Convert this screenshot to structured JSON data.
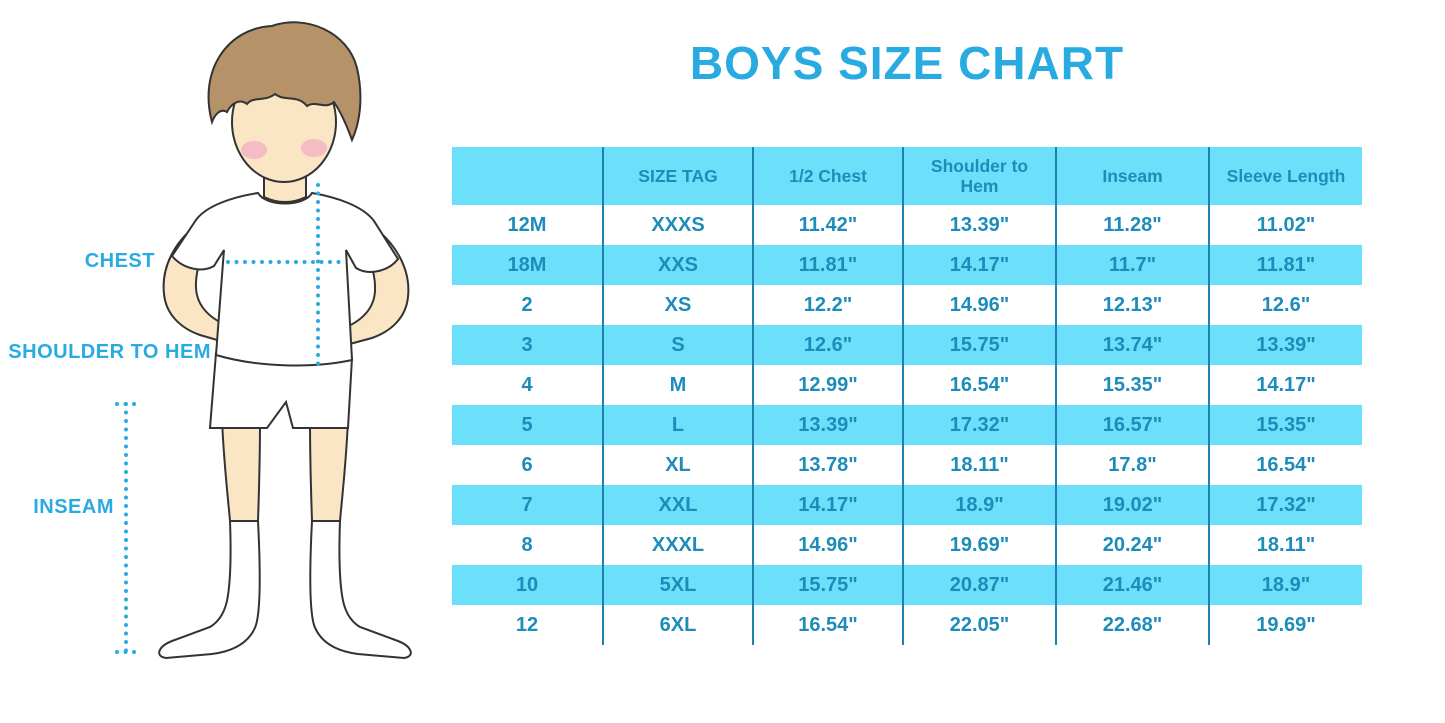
{
  "title": "BOYS SIZE CHART",
  "figure": {
    "labels": {
      "chest": "CHEST",
      "shoulder_to_hem": "SHOULDER TO HEM",
      "inseam": "INSEAM"
    }
  },
  "chart_data": {
    "type": "table",
    "title": "BOYS SIZE CHART",
    "columns": [
      "",
      "SIZE TAG",
      "1/2 Chest",
      "Shoulder to Hem",
      "Inseam",
      "Sleeve Length"
    ],
    "rows": [
      [
        "12M",
        "XXXS",
        "11.42\"",
        "13.39\"",
        "11.28\"",
        "11.02\""
      ],
      [
        "18M",
        "XXS",
        "11.81\"",
        "14.17\"",
        "11.7\"",
        "11.81\""
      ],
      [
        "2",
        "XS",
        "12.2\"",
        "14.96\"",
        "12.13\"",
        "12.6\""
      ],
      [
        "3",
        "S",
        "12.6\"",
        "15.75\"",
        "13.74\"",
        "13.39\""
      ],
      [
        "4",
        "M",
        "12.99\"",
        "16.54\"",
        "15.35\"",
        "14.17\""
      ],
      [
        "5",
        "L",
        "13.39\"",
        "17.32\"",
        "16.57\"",
        "15.35\""
      ],
      [
        "6",
        "XL",
        "13.78\"",
        "18.11\"",
        "17.8\"",
        "16.54\""
      ],
      [
        "7",
        "XXL",
        "14.17\"",
        "18.9\"",
        "19.02\"",
        "17.32\""
      ],
      [
        "8",
        "XXXL",
        "14.96\"",
        "19.69\"",
        "20.24\"",
        "18.11\""
      ],
      [
        "10",
        "5XL",
        "15.75\"",
        "20.87\"",
        "21.46\"",
        "18.9\""
      ],
      [
        "12",
        "6XL",
        "16.54\"",
        "22.05\"",
        "22.68\"",
        "19.69\""
      ]
    ],
    "row_striping": "white rows alternate with cyan rows, header cyan",
    "legend_position": "none",
    "grid": "vertical dividers only"
  },
  "colors": {
    "accent_blue": "#29ABE2",
    "table_fill": "#6CE0FA",
    "table_text": "#1E8CB8",
    "divider": "#1D82AE",
    "skin": "#FAE5C4",
    "hair": "#B69269",
    "blush": "#F3B3C5",
    "outline": "#333333",
    "white": "#FFFFFF"
  }
}
